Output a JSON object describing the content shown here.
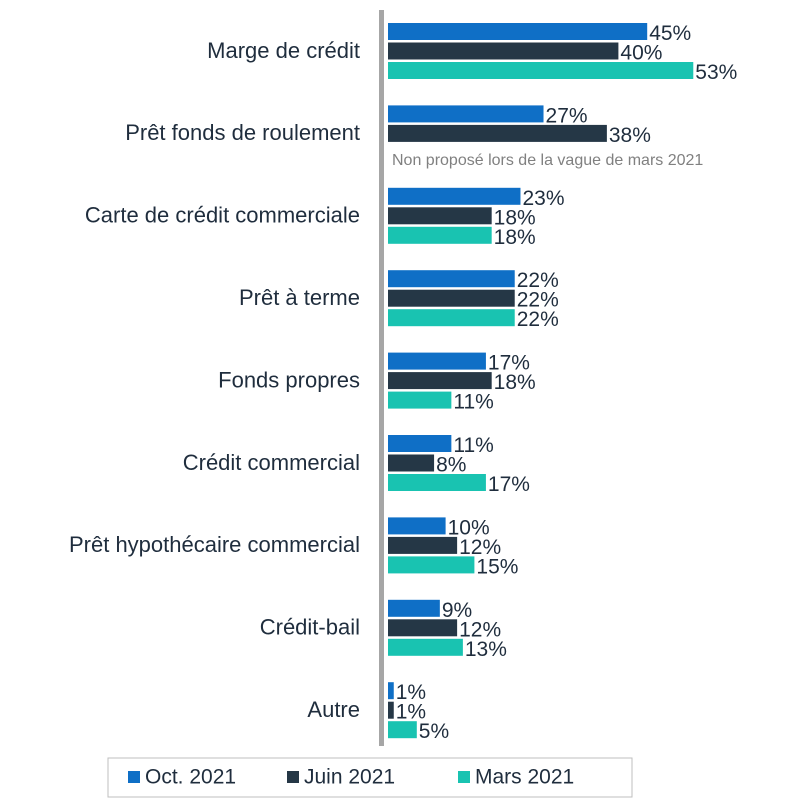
{
  "chart_data": {
    "type": "bar",
    "orientation": "horizontal",
    "categories": [
      "Marge de crédit",
      "Prêt fonds de roulement",
      "Carte de crédit commerciale",
      "Prêt à terme",
      "Fonds propres",
      "Crédit commercial",
      "Prêt hypothécaire commercial",
      "Crédit-bail",
      "Autre"
    ],
    "series": [
      {
        "name": "Oct. 2021",
        "color": "#0f6fc6",
        "values": [
          45,
          27,
          23,
          22,
          17,
          11,
          10,
          9,
          1
        ],
        "value_labels": [
          "45%",
          "27%",
          "23%",
          "22%",
          "17%",
          "11%",
          "10%",
          "9%",
          "1%"
        ]
      },
      {
        "name": "Juin 2021",
        "color": "#253746",
        "values": [
          40,
          38,
          18,
          22,
          18,
          8,
          12,
          12,
          1
        ],
        "value_labels": [
          "40%",
          "38%",
          "18%",
          "22%",
          "18%",
          "8%",
          "12%",
          "12%",
          "1%"
        ]
      },
      {
        "name": "Mars 2021",
        "color": "#19c3b1",
        "values": [
          53,
          null,
          18,
          22,
          11,
          17,
          15,
          13,
          5
        ],
        "value_labels": [
          "53%",
          null,
          "18%",
          "22%",
          "11%",
          "17%",
          "15%",
          "13%",
          "5%"
        ]
      }
    ],
    "annotation": "Non proposé lors de la vague de mars 2021",
    "legend": "bottom"
  }
}
